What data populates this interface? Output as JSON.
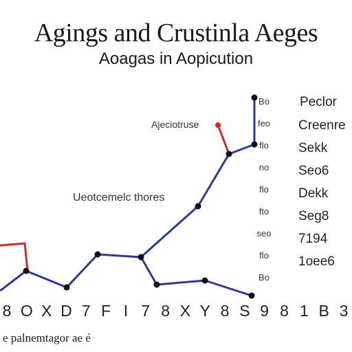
{
  "header": {
    "title": "Agings and Crustinla Aeges",
    "subtitle": "Aoagas in Aopicution"
  },
  "footnote": "e palnemtagor ae é",
  "colors": {
    "series_blue": "#2a3aa0",
    "series_red": "#d62a2a",
    "marker": "#111111"
  },
  "chart_data": {
    "type": "line",
    "title": "Agings and Crustinla Aeges",
    "subtitle": "Aoagas in Aopicution",
    "x_tick_labels": [
      "8",
      "O",
      "X",
      "D",
      "7",
      "F",
      "I",
      "7",
      "8",
      "X",
      "Y",
      "8",
      "S",
      "9",
      "8",
      "1",
      "B",
      "3"
    ],
    "annotations": [
      {
        "text": "Ajeciotruse",
        "size": 14
      },
      {
        "text": "Ueotcemelc thores",
        "size": 16
      }
    ],
    "right_panel": {
      "header": "Peclor",
      "labels": [
        "Bo",
        "feo",
        "flo",
        "no",
        "flo",
        "fto",
        "seo",
        "flo",
        "Bo"
      ],
      "values": [
        "Creenre",
        "Sekk",
        "Seo6",
        "Dekk",
        "Seg8",
        "7194",
        "1oee6"
      ]
    },
    "series": [
      {
        "color": "#2a3aa0",
        "points": [
          [
            0,
            423
          ],
          [
            38,
            394
          ],
          [
            97,
            418
          ],
          [
            142,
            370
          ],
          [
            205,
            374
          ],
          [
            228,
            414
          ],
          [
            298,
            408
          ],
          [
            366,
            430
          ]
        ]
      },
      {
        "color": "#2a3aa0",
        "points": [
          [
            205,
            374
          ],
          [
            288,
            300
          ],
          [
            333,
            224
          ],
          [
            370,
            210
          ],
          [
            370,
            142
          ]
        ]
      },
      {
        "color": "#d62a2a",
        "points": [
          [
            0,
            357
          ],
          [
            36,
            354
          ],
          [
            40,
            394
          ]
        ]
      },
      {
        "color": "#d62a2a",
        "points": [
          [
            317,
            182
          ],
          [
            333,
            224
          ]
        ]
      }
    ],
    "markers": [
      [
        38,
        394
      ],
      [
        97,
        418
      ],
      [
        142,
        370
      ],
      [
        205,
        374
      ],
      [
        228,
        414
      ],
      [
        298,
        408
      ],
      [
        366,
        430
      ],
      [
        288,
        300
      ],
      [
        333,
        224
      ],
      [
        370,
        210
      ],
      [
        370,
        142
      ]
    ],
    "red_markers": [
      [
        317,
        182
      ]
    ]
  }
}
